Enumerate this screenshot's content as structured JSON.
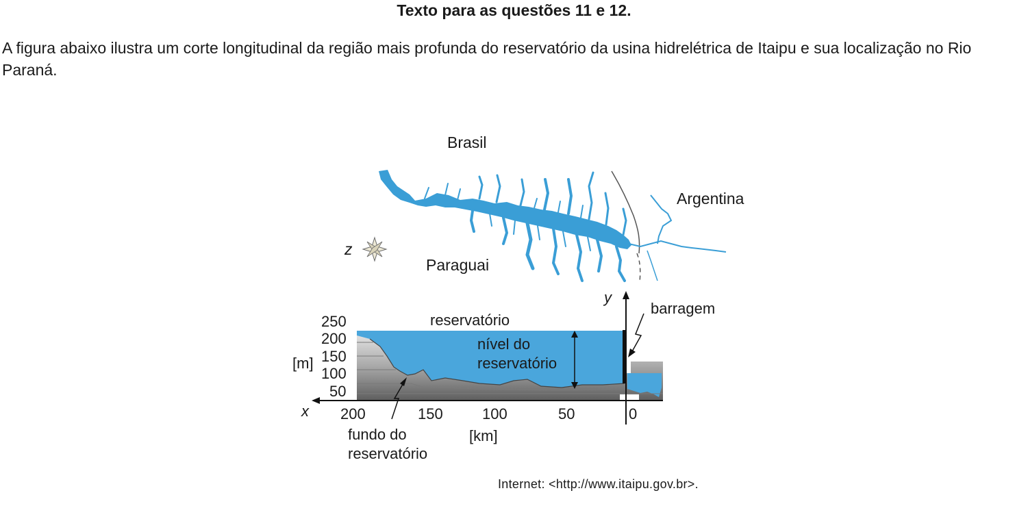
{
  "heading": "Texto para as questões 11 e 12.",
  "paragraph": "A figura abaixo ilustra um corte longitudinal da região mais profunda do reservatório da usina hidrelétrica de Itaipu e sua localização no Rio Paraná.",
  "map": {
    "labels": {
      "brasil": "Brasil",
      "argentina": "Argentina",
      "paraguai": "Paraguai",
      "compass": "z"
    }
  },
  "profile": {
    "y_axis_label": "y",
    "x_axis_label": "x",
    "y_unit": "[m]",
    "x_unit": "[km]",
    "y_ticks": [
      "250",
      "200",
      "150",
      "100",
      "50"
    ],
    "x_ticks": [
      "200",
      "150",
      "100",
      "50",
      "0"
    ],
    "annotations": {
      "reservatorio": "reservatório",
      "nivel_line1": "nível do",
      "nivel_line2": "reservatório",
      "barragem": "barragem",
      "fundo_line1": "fundo do",
      "fundo_line2": "reservatório"
    }
  },
  "colors": {
    "water": "#4aa6dc",
    "ground_light": "#d9d9d9",
    "ground_dark": "#6b6b6b"
  },
  "source": "Internet: <http://www.itaipu.gov.br>."
}
